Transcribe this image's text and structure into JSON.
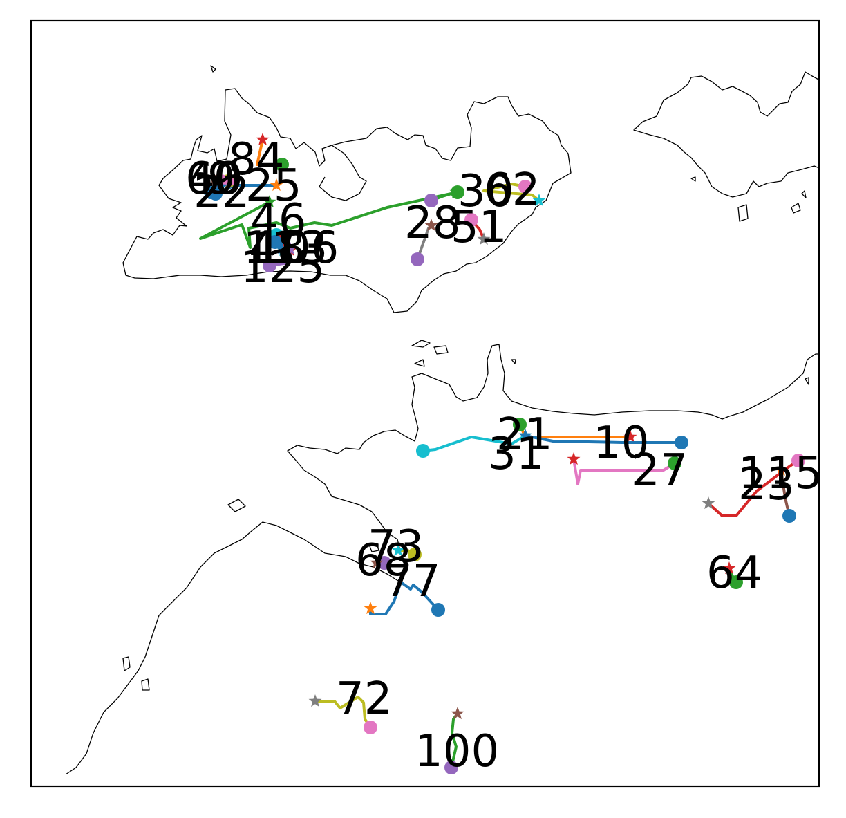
{
  "colors": {
    "blue": "#1f77b4",
    "orange": "#ff7f0e",
    "green": "#2ca02c",
    "red": "#d62728",
    "purple": "#9467bd",
    "brown": "#8c564b",
    "pink": "#e377c2",
    "gray": "#7f7f7f",
    "olive": "#bcbd22",
    "cyan": "#17becf"
  },
  "tracks": [
    {
      "label": "84",
      "color": "orange",
      "end_color": "red",
      "start_color": "green"
    },
    {
      "label": "25",
      "color": "blue",
      "end_color": "orange",
      "start_color": "blue"
    },
    {
      "label": "9",
      "color": "olive",
      "end_color": "olive",
      "start_color": "olive"
    },
    {
      "label": "40",
      "color": "brown",
      "end_color": "brown",
      "start_color": "brown"
    },
    {
      "label": "60",
      "color": "pink",
      "end_color": "pink",
      "start_color": "pink"
    },
    {
      "label": "22",
      "color": "blue",
      "end_color": "blue",
      "start_color": "blue"
    },
    {
      "label": "46",
      "color": "green",
      "end_color": "green",
      "start_color": "green"
    },
    {
      "label": "48",
      "color": "cyan",
      "end_color": "cyan",
      "start_color": "cyan"
    },
    {
      "label": "106",
      "color": "red",
      "end_color": "red",
      "start_color": "red"
    },
    {
      "label": "113",
      "color": "blue",
      "end_color": "blue",
      "start_color": "blue"
    },
    {
      "label": "125",
      "color": "purple",
      "end_color": "purple",
      "start_color": "purple"
    },
    {
      "label": "30",
      "color": "green",
      "end_color": "green",
      "start_color": "purple"
    },
    {
      "label": "62",
      "color": "olive",
      "end_color": "cyan",
      "start_color": "pink"
    },
    {
      "label": "28",
      "color": "gray",
      "end_color": "brown",
      "start_color": "purple"
    },
    {
      "label": "51",
      "color": "red",
      "end_color": "gray",
      "start_color": "pink"
    },
    {
      "label": "21",
      "color": "orange",
      "end_color": "red",
      "start_color": "green"
    },
    {
      "label": "31",
      "color": "cyan",
      "end_color": "cyan",
      "start_color": "cyan"
    },
    {
      "label": "10",
      "color": "blue",
      "end_color": "blue",
      "start_color": "blue"
    },
    {
      "label": "27",
      "color": "pink",
      "end_color": "red",
      "start_color": "green"
    },
    {
      "label": "115",
      "color": "brown",
      "end_color": "orange",
      "start_color": "blue"
    },
    {
      "label": "23",
      "color": "red",
      "end_color": "gray",
      "start_color": "pink"
    },
    {
      "label": "73",
      "color": "olive",
      "end_color": "cyan",
      "start_color": "olive"
    },
    {
      "label": "68",
      "color": "purple",
      "end_color": "brown",
      "start_color": "purple"
    },
    {
      "label": "77",
      "color": "blue",
      "end_color": "orange",
      "start_color": "blue"
    },
    {
      "label": "64",
      "color": "green",
      "end_color": "red",
      "start_color": "green"
    },
    {
      "label": "72",
      "color": "olive",
      "end_color": "gray",
      "start_color": "pink"
    },
    {
      "label": "100",
      "color": "green",
      "end_color": "brown",
      "start_color": "purple"
    }
  ]
}
